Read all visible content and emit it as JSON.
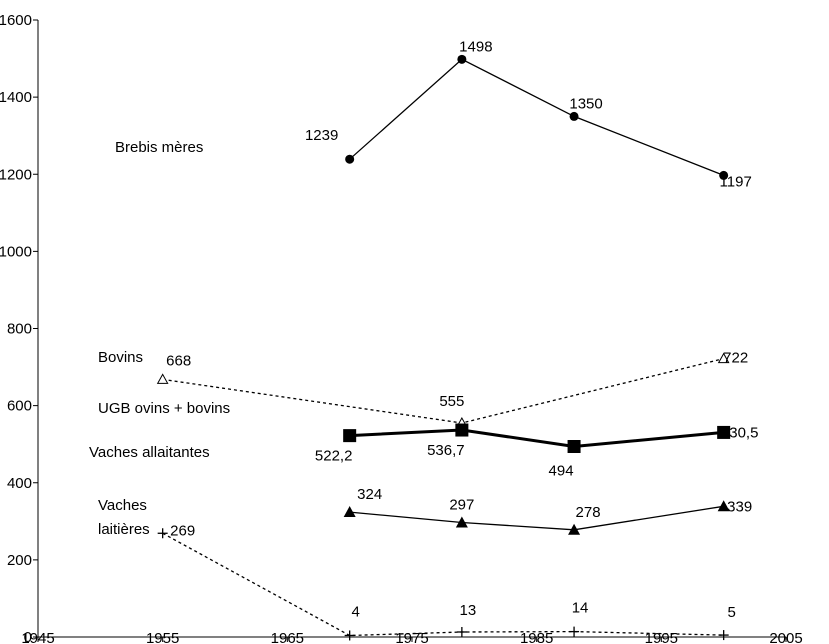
{
  "chart_data": {
    "type": "line",
    "title": "",
    "xlabel": "",
    "ylabel": "",
    "xlim": [
      1945,
      2005
    ],
    "ylim": [
      0,
      1600
    ],
    "xticks": [
      1945,
      1955,
      1965,
      1975,
      1985,
      1995,
      2005
    ],
    "yticks": [
      0,
      200,
      400,
      600,
      800,
      1000,
      1200,
      1400,
      1600
    ],
    "grid": false,
    "legend": "none",
    "series": [
      {
        "name": "Brebis mères",
        "marker": "circle",
        "line": "solid",
        "points": [
          {
            "x": 1970,
            "y": 1239,
            "label": "1239"
          },
          {
            "x": 1979,
            "y": 1498,
            "label": "1498"
          },
          {
            "x": 1988,
            "y": 1350,
            "label": "1350"
          },
          {
            "x": 2000,
            "y": 1197,
            "label": "1197"
          }
        ]
      },
      {
        "name": "Bovins",
        "marker": "triangle-open",
        "line": "dashed",
        "points": [
          {
            "x": 1955,
            "y": 668,
            "label": "668"
          },
          {
            "x": 1979,
            "y": 555,
            "label": "555"
          },
          {
            "x": 2000,
            "y": 722,
            "label": "722"
          }
        ]
      },
      {
        "name": "UGB ovins + bovins",
        "marker": "square",
        "line": "thick",
        "points": [
          {
            "x": 1970,
            "y": 522.2,
            "label": "522,2"
          },
          {
            "x": 1979,
            "y": 536.7,
            "label": "536,7"
          },
          {
            "x": 1988,
            "y": 494,
            "label": "494"
          },
          {
            "x": 2000,
            "y": 530.5,
            "label": "530,5"
          }
        ]
      },
      {
        "name": "Vaches allaitantes",
        "marker": "triangle",
        "line": "solid",
        "points": [
          {
            "x": 1970,
            "y": 324,
            "label": "324"
          },
          {
            "x": 1979,
            "y": 297,
            "label": "297"
          },
          {
            "x": 1988,
            "y": 278,
            "label": "278"
          },
          {
            "x": 2000,
            "y": 339,
            "label": "339"
          }
        ]
      },
      {
        "name": "Vaches laitières",
        "marker": "plus",
        "line": "dashed",
        "points": [
          {
            "x": 1955,
            "y": 269,
            "label": "269"
          },
          {
            "x": 1970,
            "y": 4,
            "label": "4"
          },
          {
            "x": 1979,
            "y": 13,
            "label": "13"
          },
          {
            "x": 1988,
            "y": 14,
            "label": "14"
          },
          {
            "x": 2000,
            "y": 5,
            "label": "5"
          }
        ]
      }
    ],
    "series_labels": {
      "brebis": "Brebis mères",
      "bovins": "Bovins",
      "ugb": "UGB ovins + bovins",
      "allaitantes": "Vaches allaitantes",
      "laitieres_line1": "Vaches",
      "laitieres_line2": "laitières"
    }
  }
}
